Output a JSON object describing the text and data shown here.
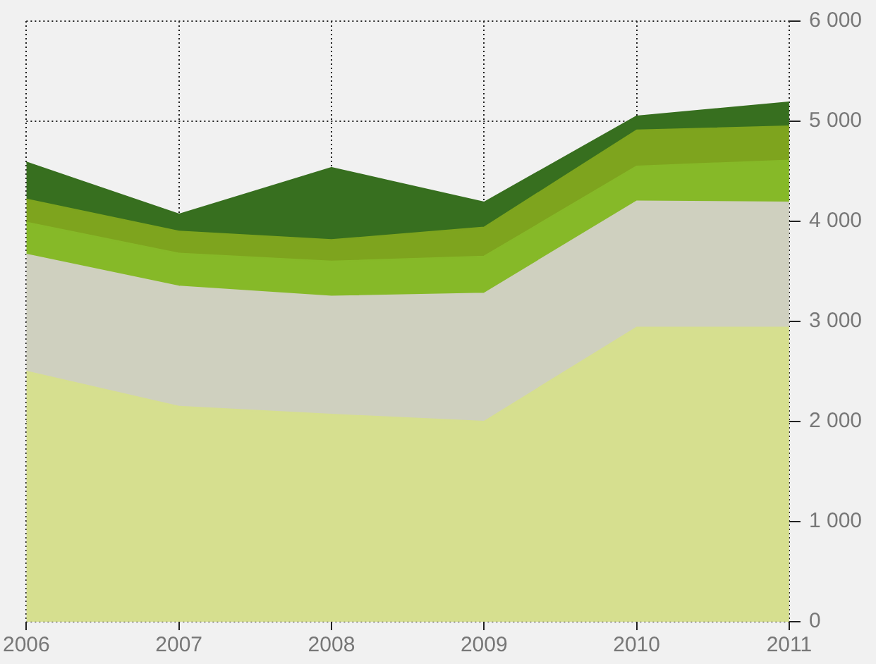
{
  "chart_data": {
    "type": "area",
    "stacked": true,
    "grid": true,
    "categories": [
      "2006",
      "2007",
      "2008",
      "2009",
      "2010",
      "2011"
    ],
    "ylim": [
      0,
      6000
    ],
    "yticks": [
      0,
      {
        "value": 1000,
        "label": "1 000"
      },
      {
        "value": 2000,
        "label": "2 000"
      },
      {
        "value": 3000,
        "label": "3 000"
      },
      {
        "value": 4000,
        "label": "4 000"
      },
      {
        "value": 5000,
        "label": "5 000"
      },
      {
        "value": 6000,
        "label": "6 000"
      }
    ],
    "series": [
      {
        "color": "#d6df8f",
        "values": [
          2500,
          2150,
          2070,
          2000,
          2940,
          2940
        ]
      },
      {
        "color": "#cfd0bf",
        "values": [
          1170,
          1200,
          1180,
          1280,
          1260,
          1250
        ]
      },
      {
        "color": "#86b928",
        "values": [
          320,
          330,
          350,
          370,
          350,
          420
        ]
      },
      {
        "color": "#7ea41e",
        "values": [
          230,
          220,
          215,
          290,
          360,
          340
        ]
      },
      {
        "color": "#376f1f",
        "values": [
          370,
          170,
          720,
          250,
          140,
          240
        ]
      }
    ]
  }
}
